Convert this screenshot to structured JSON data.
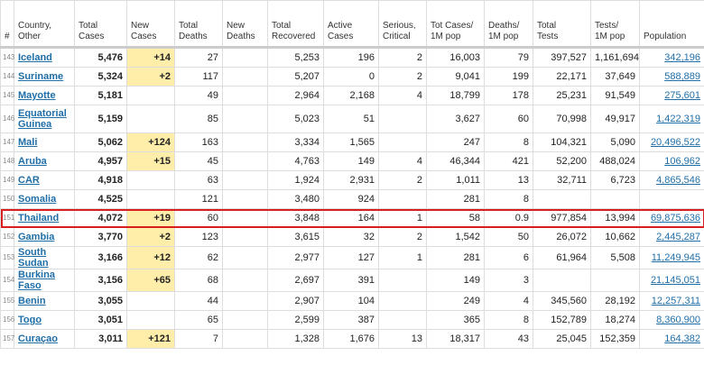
{
  "table": {
    "columns": [
      "#",
      "Country,\nOther",
      "Total\nCases",
      "New\nCases",
      "Total\nDeaths",
      "New\nDeaths",
      "Total\nRecovered",
      "Active\nCases",
      "Serious,\nCritical",
      "Tot Cases/\n1M pop",
      "Deaths/\n1M pop",
      "Total\nTests",
      "Tests/\n1M pop",
      "Population"
    ],
    "rows": [
      [
        "143",
        "Iceland",
        "5,476",
        "+14",
        "27",
        null,
        "5,253",
        "196",
        "2",
        "16,003",
        "79",
        "397,527",
        "1,161,694",
        "342,196"
      ],
      [
        "144",
        "Suriname",
        "5,324",
        "+2",
        "117",
        null,
        "5,207",
        "0",
        "2",
        "9,041",
        "199",
        "22,171",
        "37,649",
        "588,889"
      ],
      [
        "145",
        "Mayotte",
        "5,181",
        null,
        "49",
        null,
        "2,964",
        "2,168",
        "4",
        "18,799",
        "178",
        "25,231",
        "91,549",
        "275,601"
      ],
      [
        "146",
        "Equatorial Guinea",
        "5,159",
        null,
        "85",
        null,
        "5,023",
        "51",
        null,
        "3,627",
        "60",
        "70,998",
        "49,917",
        "1,422,319"
      ],
      [
        "147",
        "Mali",
        "5,062",
        "+124",
        "163",
        null,
        "3,334",
        "1,565",
        null,
        "247",
        "8",
        "104,321",
        "5,090",
        "20,496,522"
      ],
      [
        "148",
        "Aruba",
        "4,957",
        "+15",
        "45",
        null,
        "4,763",
        "149",
        "4",
        "46,344",
        "421",
        "52,200",
        "488,024",
        "106,962"
      ],
      [
        "149",
        "CAR",
        "4,918",
        null,
        "63",
        null,
        "1,924",
        "2,931",
        "2",
        "1,011",
        "13",
        "32,711",
        "6,723",
        "4,865,546"
      ],
      [
        "150",
        "Somalia",
        "4,525",
        null,
        "121",
        null,
        "3,480",
        "924",
        null,
        "281",
        "8",
        null,
        null,
        null
      ],
      [
        "151",
        "Thailand",
        "4,072",
        "+19",
        "60",
        null,
        "3,848",
        "164",
        "1",
        "58",
        "0.9",
        "977,854",
        "13,994",
        "69,875,636"
      ],
      [
        "152",
        "Gambia",
        "3,770",
        "+2",
        "123",
        null,
        "3,615",
        "32",
        "2",
        "1,542",
        "50",
        "26,072",
        "10,662",
        "2,445,287"
      ],
      [
        "153",
        "South Sudan",
        "3,166",
        "+12",
        "62",
        null,
        "2,977",
        "127",
        "1",
        "281",
        "6",
        "61,964",
        "5,508",
        "11,249,945"
      ],
      [
        "154",
        "Burkina Faso",
        "3,156",
        "+65",
        "68",
        null,
        "2,697",
        "391",
        null,
        "149",
        "3",
        null,
        null,
        "21,145,051"
      ],
      [
        "155",
        "Benin",
        "3,055",
        null,
        "44",
        null,
        "2,907",
        "104",
        null,
        "249",
        "4",
        "345,560",
        "28,192",
        "12,257,311"
      ],
      [
        "156",
        "Togo",
        "3,051",
        null,
        "65",
        null,
        "2,599",
        "387",
        null,
        "365",
        "8",
        "152,789",
        "18,274",
        "8,360,900"
      ],
      [
        "157",
        "Curaçao",
        "3,011",
        "+121",
        "7",
        null,
        "1,328",
        "1,676",
        "13",
        "18,317",
        "43",
        "25,045",
        "152,359",
        "164,382"
      ]
    ]
  }
}
